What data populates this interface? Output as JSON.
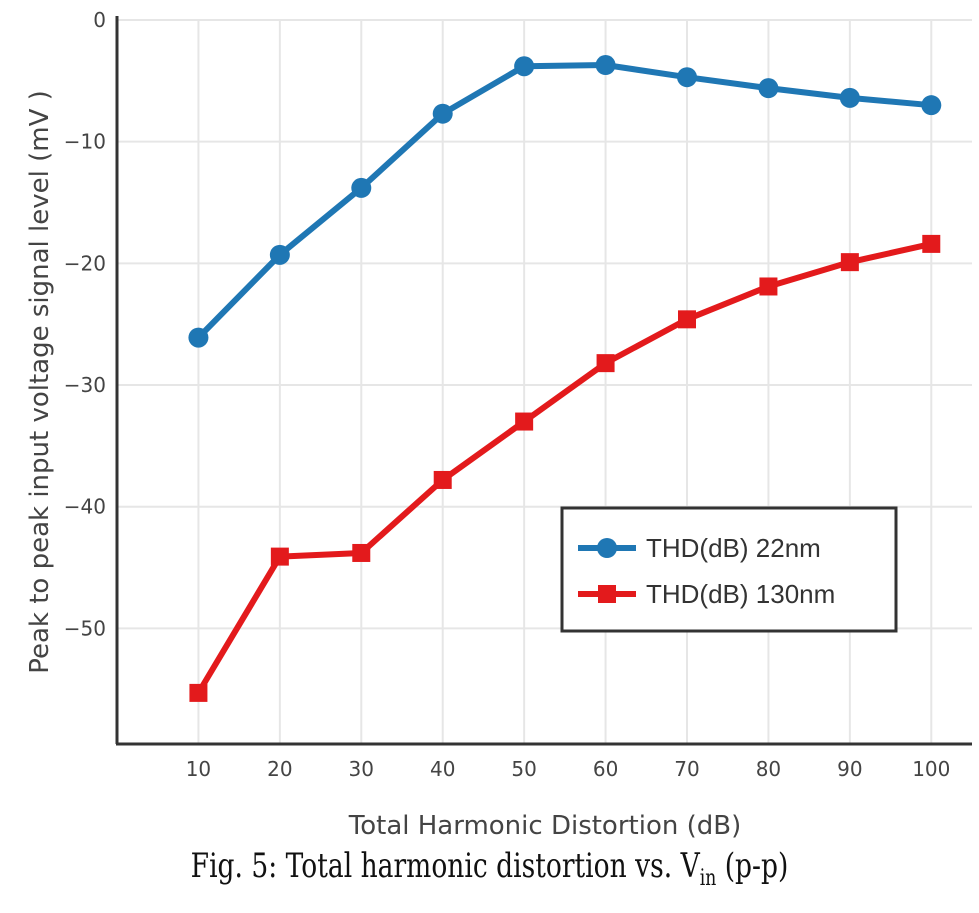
{
  "chart_data": {
    "type": "line",
    "title": "",
    "xlabel": "Total Harmonic Distortion (dB)",
    "ylabel": "Peak to peak input voltage signal level (mV )",
    "x": [
      10,
      20,
      30,
      40,
      50,
      60,
      70,
      80,
      90,
      100
    ],
    "xlim": [
      0,
      105
    ],
    "ylim": [
      -59.5,
      0
    ],
    "xticks": [
      10,
      20,
      30,
      40,
      50,
      60,
      70,
      80,
      90,
      100
    ],
    "yticks": [
      0,
      -10,
      -20,
      -30,
      -40,
      -50
    ],
    "ytick_labels": [
      "0",
      "−10",
      "−20",
      "−30",
      "−40",
      "−50"
    ],
    "grid": true,
    "legend_position": "bottom-right",
    "series": [
      {
        "name": "THD(dB) 22nm",
        "color": "#1f77b4",
        "marker": "circle",
        "values": [
          -26.1,
          -19.3,
          -13.8,
          -7.7,
          -3.8,
          -3.7,
          -4.7,
          -5.6,
          -6.4,
          -7.0
        ]
      },
      {
        "name": "THD(dB) 130nm",
        "color": "#e31a1c",
        "marker": "square",
        "values": [
          -55.3,
          -44.1,
          -43.8,
          -37.8,
          -33.0,
          -28.2,
          -24.6,
          -21.9,
          -19.9,
          -18.4
        ]
      }
    ]
  },
  "caption": {
    "prefix": "Fig. 5: Total harmonic distortion vs. V",
    "subscript": "in",
    "suffix": " (p-p)"
  }
}
